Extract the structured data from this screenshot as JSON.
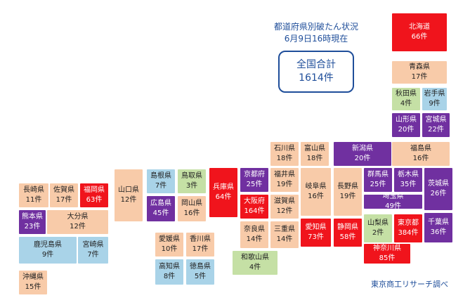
{
  "title": {
    "line1": "都道府県別破たん状況",
    "line2": "6月9日16時現在"
  },
  "total": {
    "label": "全国合計",
    "value": "1614件"
  },
  "source": "東京商工リサーチ調べ",
  "colors": {
    "red": "#f0141c",
    "purple": "#7030a0",
    "orange": "#f8cba9",
    "green": "#c5e0a5",
    "blue": "#a9d3e8",
    "title_text": "#1f4e9a"
  },
  "prefectures": [
    {
      "name": "北海道",
      "count": "66件",
      "color": "red"
    },
    {
      "name": "青森県",
      "count": "17件",
      "color": "orange"
    },
    {
      "name": "秋田県",
      "count": "4件",
      "color": "green"
    },
    {
      "name": "岩手県",
      "count": "9件",
      "color": "blue"
    },
    {
      "name": "山形県",
      "count": "20件",
      "color": "purple"
    },
    {
      "name": "宮城県",
      "count": "22件",
      "color": "purple"
    },
    {
      "name": "福島県",
      "count": "16件",
      "color": "orange"
    },
    {
      "name": "新潟県",
      "count": "20件",
      "color": "purple"
    },
    {
      "name": "石川県",
      "count": "18件",
      "color": "orange"
    },
    {
      "name": "富山県",
      "count": "18件",
      "color": "orange"
    },
    {
      "name": "群馬県",
      "count": "25件",
      "color": "purple"
    },
    {
      "name": "栃木県",
      "count": "35件",
      "color": "purple"
    },
    {
      "name": "茨城県",
      "count": "26件",
      "color": "purple"
    },
    {
      "name": "埼玉県",
      "count": "49件",
      "color": "purple"
    },
    {
      "name": "山梨県",
      "count": "2件",
      "color": "green"
    },
    {
      "name": "東京都",
      "count": "384件",
      "color": "red"
    },
    {
      "name": "千葉県",
      "count": "36件",
      "color": "purple"
    },
    {
      "name": "神奈川県",
      "count": "85件",
      "color": "red"
    },
    {
      "name": "長野県",
      "count": "19件",
      "color": "orange"
    },
    {
      "name": "岐阜県",
      "count": "16件",
      "color": "orange"
    },
    {
      "name": "福井県",
      "count": "19件",
      "color": "orange"
    },
    {
      "name": "京都府",
      "count": "25件",
      "color": "purple"
    },
    {
      "name": "滋賀県",
      "count": "12件",
      "color": "orange"
    },
    {
      "name": "愛知県",
      "count": "73件",
      "color": "red"
    },
    {
      "name": "静岡県",
      "count": "58件",
      "color": "red"
    },
    {
      "name": "大阪府",
      "count": "164件",
      "color": "red"
    },
    {
      "name": "兵庫県",
      "count": "64件",
      "color": "red"
    },
    {
      "name": "奈良県",
      "count": "14件",
      "color": "orange"
    },
    {
      "name": "三重県",
      "count": "14件",
      "color": "orange"
    },
    {
      "name": "和歌山県",
      "count": "4件",
      "color": "green"
    },
    {
      "name": "鳥取県",
      "count": "3件",
      "color": "green"
    },
    {
      "name": "島根県",
      "count": "7件",
      "color": "blue"
    },
    {
      "name": "岡山県",
      "count": "16件",
      "color": "orange"
    },
    {
      "name": "広島県",
      "count": "45件",
      "color": "purple"
    },
    {
      "name": "山口県",
      "count": "12件",
      "color": "orange"
    },
    {
      "name": "愛媛県",
      "count": "10件",
      "color": "orange"
    },
    {
      "name": "香川県",
      "count": "17件",
      "color": "orange"
    },
    {
      "name": "高知県",
      "count": "8件",
      "color": "blue"
    },
    {
      "name": "徳島県",
      "count": "5件",
      "color": "blue"
    },
    {
      "name": "長崎県",
      "count": "11件",
      "color": "orange"
    },
    {
      "name": "佐賀県",
      "count": "17件",
      "color": "orange"
    },
    {
      "name": "福岡県",
      "count": "63件",
      "color": "red"
    },
    {
      "name": "熊本県",
      "count": "23件",
      "color": "purple"
    },
    {
      "name": "大分県",
      "count": "12件",
      "color": "orange"
    },
    {
      "name": "鹿児島県",
      "count": "9件",
      "color": "blue"
    },
    {
      "name": "宮崎県",
      "count": "7件",
      "color": "blue"
    },
    {
      "name": "沖縄県",
      "count": "15件",
      "color": "orange"
    }
  ]
}
